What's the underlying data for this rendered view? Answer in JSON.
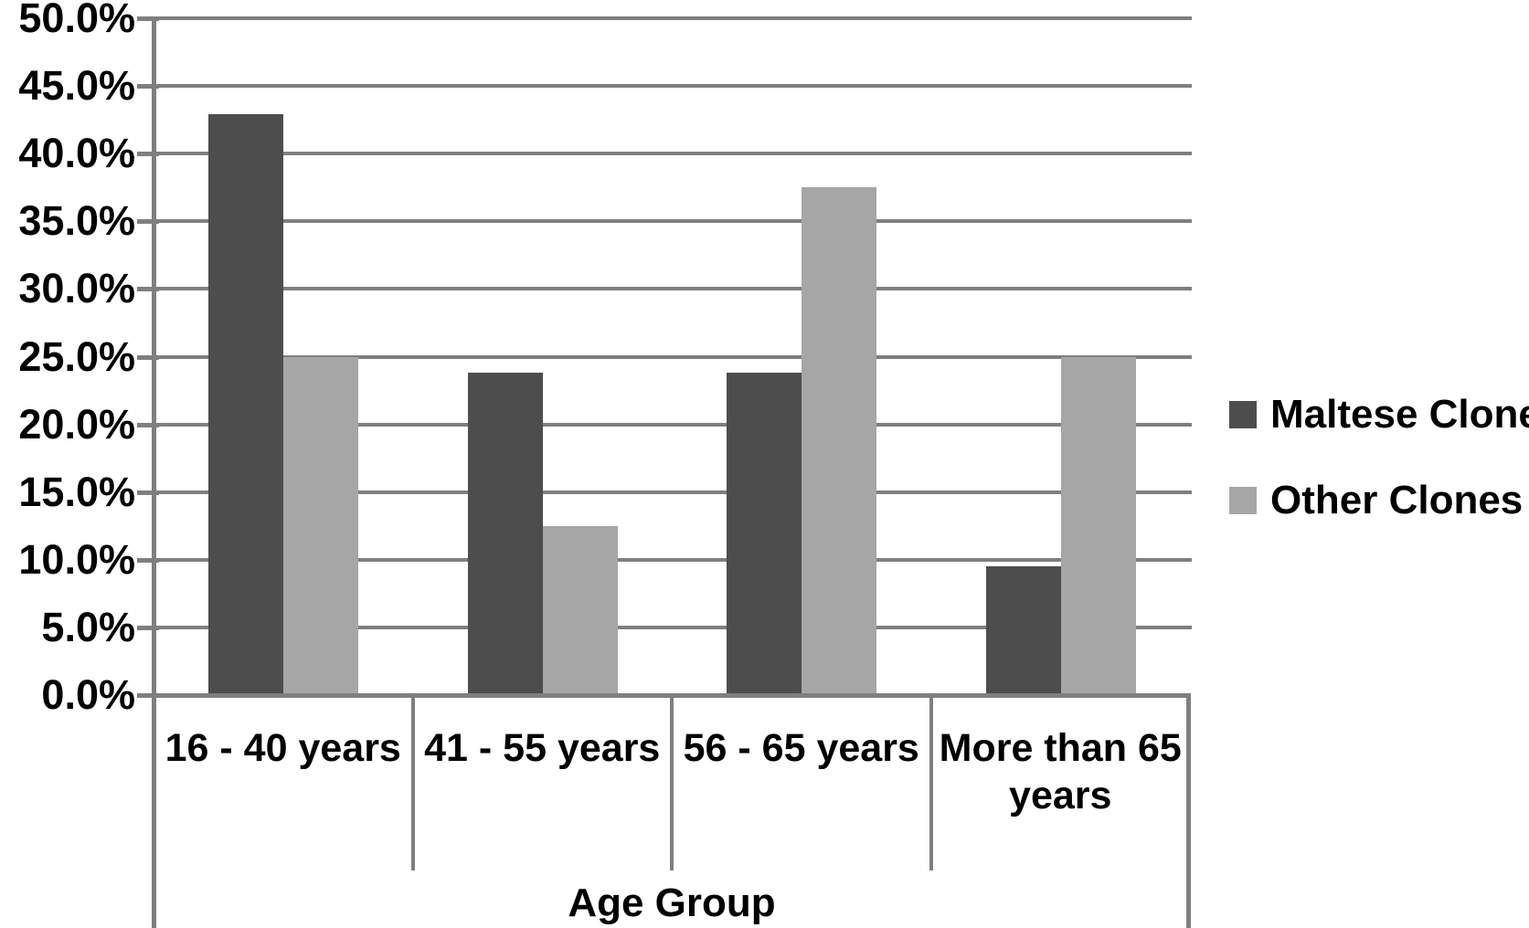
{
  "chart_data": {
    "type": "bar",
    "title": "",
    "xlabel": "Age Group",
    "ylabel": "",
    "categories": [
      "16 - 40 years",
      "41 - 55 years",
      "56 - 65 years",
      "More than 65 years"
    ],
    "series": [
      {
        "name": "Maltese Clone",
        "color": "#4d4d4d",
        "values": [
          42.9,
          23.8,
          23.8,
          9.5
        ]
      },
      {
        "name": "Other Clones",
        "color": "#a6a6a6",
        "values": [
          25.0,
          12.5,
          37.5,
          25.0
        ]
      }
    ],
    "ylim": [
      0,
      50
    ],
    "ytick_values": [
      50,
      45,
      40,
      35,
      30,
      25,
      20,
      15,
      10,
      5,
      0
    ],
    "ytick_labels": [
      "50.0%",
      "45.0%",
      "40.0%",
      "35.0%",
      "30.0%",
      "25.0%",
      "20.0%",
      "15.0%",
      "10.0%",
      "5.0%",
      "0.0%"
    ],
    "grid": "horizontal",
    "legend_position": "right"
  },
  "colors": {
    "grid_line": "#7f7f7f",
    "axis_line": "#7f7f7f",
    "text": "#000000",
    "background": "#ffffff"
  }
}
